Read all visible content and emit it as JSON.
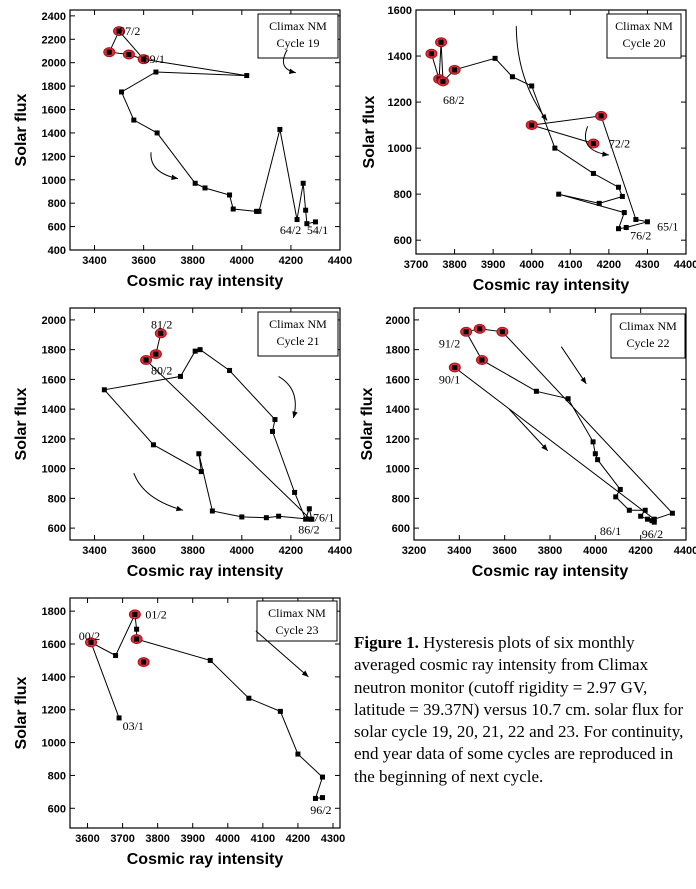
{
  "chart_data": [
    {
      "type": "line",
      "legend": [
        "Climax NM",
        "Cycle 19"
      ],
      "xlabel": "Cosmic ray intensity",
      "ylabel": "Solar flux",
      "xlim": [
        3300,
        4400
      ],
      "ylim": [
        400,
        2450
      ],
      "xticks": [
        3400,
        3600,
        3800,
        4000,
        4200,
        4400
      ],
      "yticks": [
        400,
        600,
        800,
        1000,
        1200,
        1400,
        1600,
        1800,
        2000,
        2200,
        2400
      ],
      "x": [
        4300,
        4265,
        4260,
        4250,
        4225,
        4155,
        4070,
        4060,
        3965,
        3950,
        3850,
        3810,
        3655,
        3560,
        3510,
        3650,
        4020,
        3600,
        3540,
        3460,
        3500,
        3600
      ],
      "y": [
        640,
        625,
        740,
        970,
        660,
        1430,
        730,
        730,
        750,
        870,
        930,
        970,
        1400,
        1510,
        1750,
        1920,
        1890,
        2030,
        2070,
        2090,
        2270,
        2030
      ],
      "circled": [
        17,
        18,
        19,
        20
      ],
      "labels": [
        {
          "text": "57/2",
          "x": 3500,
          "y": 2270
        },
        {
          "text": "59/1",
          "x": 3600,
          "y": 2030
        },
        {
          "text": "64/2",
          "x": 4155,
          "y": 570
        },
        {
          "text": "54/1",
          "x": 4265,
          "y": 570
        }
      ]
    },
    {
      "type": "line",
      "legend": [
        "Climax NM",
        "Cycle 20"
      ],
      "xlabel": "Cosmic ray intensity",
      "ylabel": "Solar flux",
      "xlim": [
        3700,
        4400
      ],
      "ylim": [
        540,
        1600
      ],
      "xticks": [
        3700,
        3800,
        3900,
        4000,
        4100,
        4200,
        4300,
        4400
      ],
      "yticks": [
        600,
        800,
        1000,
        1200,
        1400,
        1600
      ],
      "x": [
        3740,
        3760,
        3765,
        3770,
        3800,
        3905,
        3950,
        4000,
        4060,
        4160,
        4225,
        4235,
        4175,
        4070,
        4240,
        4225,
        4245,
        4300,
        4270,
        4180,
        4000,
        4160
      ],
      "y": [
        1410,
        1300,
        1460,
        1290,
        1340,
        1390,
        1310,
        1270,
        1000,
        890,
        830,
        790,
        760,
        800,
        720,
        650,
        655,
        680,
        690,
        1140,
        1100,
        1020
      ],
      "circled": [
        0,
        1,
        2,
        3,
        4,
        19,
        20,
        21
      ],
      "labels": [
        {
          "text": "68/2",
          "x": 3770,
          "y": 1210
        },
        {
          "text": "72/2",
          "x": 4200,
          "y": 1020
        },
        {
          "text": "76/2",
          "x": 4255,
          "y": 620
        },
        {
          "text": "65/1",
          "x": 4325,
          "y": 660
        }
      ]
    },
    {
      "type": "line",
      "legend": [
        "Climax NM",
        "Cycle 21"
      ],
      "xlabel": "Cosmic ray intensity",
      "ylabel": "Solar flux",
      "xlim": [
        3300,
        4400
      ],
      "ylim": [
        520,
        2080
      ],
      "xticks": [
        3400,
        3600,
        3800,
        4000,
        4200,
        4400
      ],
      "yticks": [
        600,
        800,
        1000,
        1200,
        1400,
        1600,
        1800,
        2000
      ],
      "x": [
        4285,
        4275,
        4260,
        4215,
        4125,
        4135,
        3950,
        3830,
        3810,
        3750,
        3440,
        3640,
        3835,
        3825,
        3880,
        4000,
        4100,
        4150,
        4280,
        3610,
        3650,
        3670
      ],
      "y": [
        660,
        730,
        660,
        840,
        1250,
        1330,
        1660,
        1800,
        1790,
        1620,
        1530,
        1160,
        980,
        1100,
        715,
        675,
        670,
        680,
        660,
        1730,
        1770,
        1910
      ],
      "circled": [
        19,
        20,
        21
      ],
      "labels": [
        {
          "text": "81/2",
          "x": 3630,
          "y": 1970
        },
        {
          "text": "80/2",
          "x": 3630,
          "y": 1660
        },
        {
          "text": "76/1",
          "x": 4290,
          "y": 670
        },
        {
          "text": "86/2",
          "x": 4230,
          "y": 590
        }
      ]
    },
    {
      "type": "line",
      "legend": [
        "Climax NM",
        "Cycle 22"
      ],
      "xlabel": "Cosmic ray intensity",
      "ylabel": "Solar flux",
      "xlim": [
        3200,
        4400
      ],
      "ylim": [
        520,
        2080
      ],
      "xticks": [
        3200,
        3400,
        3600,
        3800,
        4000,
        4200,
        4400
      ],
      "yticks": [
        600,
        800,
        1000,
        1200,
        1400,
        1600,
        1800,
        2000
      ],
      "x": [
        4260,
        4250,
        4230,
        4200,
        4220,
        4150,
        4090,
        4110,
        4010,
        4000,
        3990,
        3880,
        3740,
        3500,
        3430,
        3490,
        3590,
        4340,
        4260,
        3380
      ],
      "y": [
        640,
        650,
        660,
        680,
        720,
        720,
        810,
        860,
        1060,
        1100,
        1180,
        1470,
        1520,
        1730,
        1920,
        1940,
        1920,
        700,
        660,
        1680
      ],
      "circled": [
        13,
        14,
        15,
        16,
        19
      ],
      "labels": [
        {
          "text": "91/2",
          "x": 3310,
          "y": 1840
        },
        {
          "text": "90/1",
          "x": 3310,
          "y": 1600
        },
        {
          "text": "86/1",
          "x": 4020,
          "y": 580
        },
        {
          "text": "96/2",
          "x": 4205,
          "y": 560
        }
      ]
    },
    {
      "type": "line",
      "legend": [
        "Climax NM",
        "Cycle 23"
      ],
      "xlabel": "Cosmic ray intensity",
      "ylabel": "Solar flux",
      "xlim": [
        3550,
        4320
      ],
      "ylim": [
        480,
        1880
      ],
      "xticks": [
        3600,
        3700,
        3800,
        3900,
        4000,
        4100,
        4200,
        4300
      ],
      "yticks": [
        600,
        800,
        1000,
        1200,
        1400,
        1600,
        1800
      ],
      "x": [
        4270,
        4250,
        4270,
        4200,
        4150,
        4060,
        3950,
        3740,
        3740,
        3735,
        3680,
        3610,
        3690
      ],
      "y": [
        665,
        660,
        790,
        930,
        1190,
        1270,
        1500,
        1630,
        1690,
        1780,
        1530,
        1610,
        1150
      ],
      "circled": [
        7,
        9,
        11
      ],
      "extra": [
        {
          "x": 3760,
          "y": 1490,
          "circled": true
        }
      ],
      "labels": [
        {
          "text": "00/2",
          "x": 3575,
          "y": 1650
        },
        {
          "text": "01/2",
          "x": 3765,
          "y": 1780
        },
        {
          "text": "03/1",
          "x": 3700,
          "y": 1100
        },
        {
          "text": "96/2",
          "x": 4235,
          "y": 590
        }
      ]
    }
  ],
  "caption": {
    "label": "Figure 1.",
    "text": " Hysteresis plots of six monthly averaged cosmic ray intensity from Climax neutron monitor (cutoff rigidity = 2.97 GV, latitude = 39.37N) versus 10.7 cm. solar flux for solar cycle 19, 20, 21, 22 and 23. For continuity, end year data of some cycles are reproduced in the beginning of next cycle."
  }
}
